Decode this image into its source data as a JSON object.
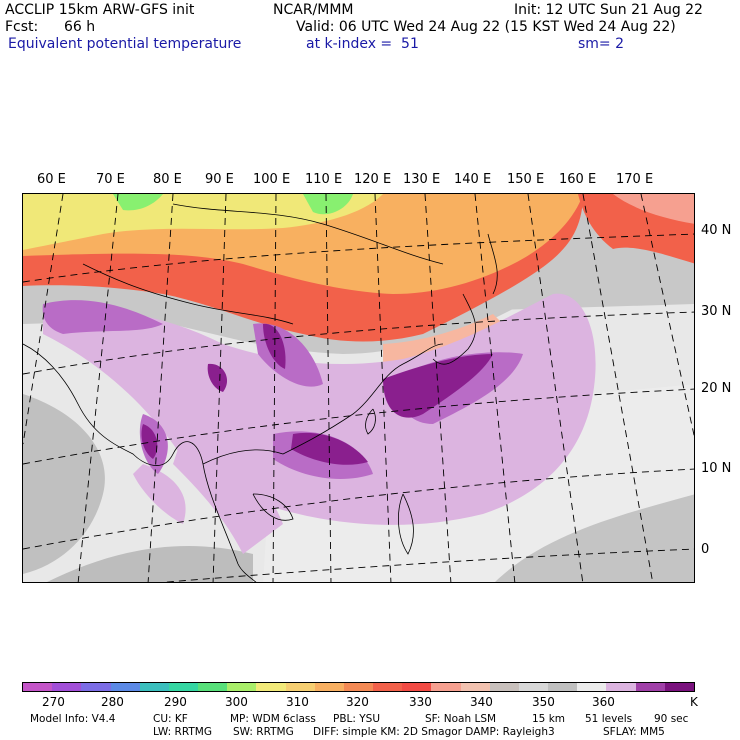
{
  "header": {
    "model": "ACCLIP 15km ARW-GFS init",
    "center": "NCAR/MMM",
    "init": "Init: 12 UTC Sun 21 Aug 22",
    "fcst_label": "Fcst:",
    "fcst_value": "66 h",
    "valid": "Valid: 06 UTC Wed 24 Aug 22 (15 KST Wed 24 Aug 22)",
    "field": "Equivalent potential temperature",
    "level": "at k-index =  51",
    "smooth": "sm= 2"
  },
  "map": {
    "lon_labels": [
      "60 E",
      "70 E",
      "80 E",
      "90 E",
      "100 E",
      "110 E",
      "120 E",
      "130 E",
      "140 E",
      "150 E",
      "160 E",
      "170 E"
    ],
    "lat_labels": [
      "40 N",
      "30 N",
      "20 N",
      "10 N",
      "0"
    ],
    "colors": {
      "ocean_grey": "#c8c8c8",
      "light_grey": "#e8e8e8",
      "yellow": "#f0e878",
      "orange": "#f8b060",
      "red": "#f25a48",
      "pink": "#f7b7a0",
      "light_purple": "#dcb4e0",
      "mid_purple": "#b96cc6",
      "dark_purple": "#8a1f8e",
      "green": "#88f070"
    }
  },
  "colorbar": {
    "colors": [
      "#c455c8",
      "#a24fd8",
      "#7c6de6",
      "#5c8ae6",
      "#3bbfbe",
      "#35d6a2",
      "#58e07a",
      "#a9ee6a",
      "#f2ea7a",
      "#f6cf72",
      "#f8b062",
      "#f48a55",
      "#f2614a",
      "#f24b44",
      "#f6a090",
      "#f2c2b0",
      "#c8c0bc",
      "#d8d8d8",
      "#c0c0c0",
      "#ececec",
      "#dcb4e0",
      "#a040a8",
      "#7a127e"
    ],
    "labels": [
      "270",
      "280",
      "290",
      "300",
      "310",
      "320",
      "330",
      "340",
      "350",
      "360"
    ],
    "unit": "K"
  },
  "footer": {
    "line1": [
      "Model Info: V4.4",
      "CU: KF",
      "MP: WDM 6class",
      "PBL: YSU",
      "SF: Noah LSM",
      "15 km",
      "51 levels",
      "90 sec"
    ],
    "line2": [
      "LW: RRTMG",
      "SW: RRTMG",
      "DIFF: simple KM: 2D Smagor DAMP: Rayleigh3",
      "SFLAY: MM5"
    ]
  }
}
